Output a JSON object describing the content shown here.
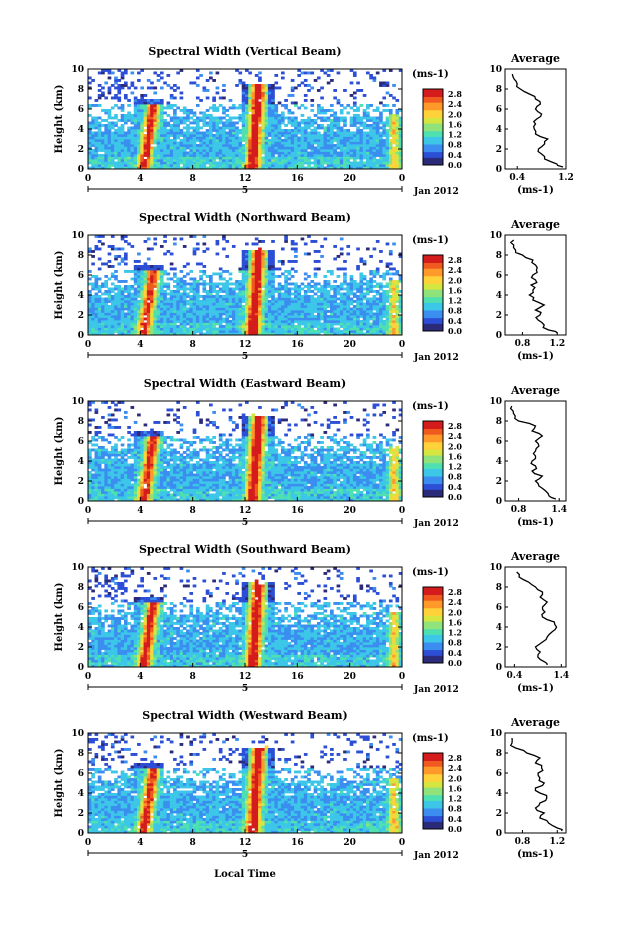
{
  "chart_data": {
    "type": "heatmap",
    "shared": {
      "date_label": "Jan 2012",
      "day_label": "5",
      "x_ticks": [
        "0",
        "4",
        "8",
        "12",
        "16",
        "20",
        "0"
      ],
      "xlabel_bottom": "Local Time",
      "ylabel": "Height (km)",
      "y_ticks": [
        "0",
        "2",
        "4",
        "6",
        "8",
        "10"
      ],
      "ylim": [
        0,
        10
      ],
      "xlim_hours": [
        0,
        24
      ],
      "colorbar_unit": "(ms-1)",
      "colorbar_ticks": [
        "0.0",
        "0.4",
        "0.8",
        "1.2",
        "1.6",
        "2.0",
        "2.4",
        "2.8"
      ],
      "colorbar_range": [
        0,
        3.0
      ],
      "colors": [
        "#2b2b7a",
        "#2c4fd6",
        "#3b8ef0",
        "#3cc6e8",
        "#4fe0b0",
        "#8fe37a",
        "#d6e640",
        "#ffd23a",
        "#ff9a2a",
        "#f05a1e",
        "#d41c1c"
      ],
      "avg_title": "Average",
      "avg_xlabel": "(ms-1)",
      "avg_yticks": [
        "0",
        "2",
        "4",
        "6",
        "8",
        "10"
      ]
    },
    "panels": [
      {
        "title": "Spectral Width (Vertical Beam)",
        "avg_xticks": [
          "0.4",
          "1.2"
        ],
        "avg_xlim": [
          0.2,
          1.2
        ],
        "avg_profile": {
          "height": [
            0.2,
            0.5,
            1.0,
            1.5,
            2.0,
            2.5,
            3.0,
            3.5,
            4.0,
            4.5,
            5.0,
            5.5,
            6.0,
            6.5,
            7.0,
            7.5,
            8.0,
            8.5,
            9.0,
            9.5
          ],
          "value": [
            1.15,
            1.05,
            0.85,
            0.8,
            0.75,
            0.85,
            0.9,
            0.7,
            0.68,
            0.7,
            0.72,
            0.8,
            0.7,
            0.78,
            0.7,
            0.6,
            0.45,
            0.4,
            0.35,
            0.32
          ]
        }
      },
      {
        "title": "Spectral Width (Northward Beam)",
        "avg_xticks": [
          "0.8",
          "1.2"
        ],
        "avg_xlim": [
          0.6,
          1.3
        ],
        "avg_profile": {
          "height": [
            0.2,
            0.5,
            1.0,
            1.5,
            2.0,
            2.5,
            3.0,
            3.5,
            4.0,
            4.5,
            5.0,
            5.5,
            6.0,
            6.5,
            7.0,
            7.5,
            8.0,
            8.5,
            9.0,
            9.5
          ],
          "value": [
            1.2,
            1.1,
            1.05,
            0.98,
            1.0,
            0.95,
            1.05,
            0.92,
            0.88,
            0.92,
            0.9,
            0.95,
            0.92,
            0.96,
            0.95,
            0.92,
            0.8,
            0.72,
            0.7,
            0.7
          ]
        }
      },
      {
        "title": "Spectral Width (Eastward Beam)",
        "avg_xticks": [
          "0.8",
          "1.4"
        ],
        "avg_xlim": [
          0.6,
          1.5
        ],
        "avg_profile": {
          "height": [
            0.2,
            0.5,
            1.0,
            1.5,
            2.0,
            2.5,
            3.0,
            3.5,
            4.0,
            4.5,
            5.0,
            5.5,
            6.0,
            6.5,
            7.0,
            7.5,
            8.0,
            8.5,
            9.0,
            9.5
          ],
          "value": [
            1.35,
            1.25,
            1.2,
            1.1,
            1.05,
            1.15,
            1.0,
            1.05,
            1.0,
            1.05,
            1.05,
            1.1,
            1.05,
            1.15,
            1.0,
            1.05,
            0.8,
            0.75,
            0.72,
            0.7
          ]
        }
      },
      {
        "title": "Spectral Width (Southward Beam)",
        "avg_xticks": [
          "0.4",
          "1.4"
        ],
        "avg_xlim": [
          0.2,
          1.5
        ],
        "avg_profile": {
          "height": [
            0.2,
            0.5,
            1.0,
            1.5,
            2.0,
            2.5,
            3.0,
            3.5,
            4.0,
            4.5,
            5.0,
            5.5,
            6.0,
            6.5,
            7.0,
            7.5,
            8.0,
            8.5,
            9.0,
            9.5
          ],
          "value": [
            1.1,
            1.05,
            0.9,
            0.95,
            0.85,
            1.0,
            1.1,
            1.2,
            1.3,
            1.25,
            1.0,
            1.05,
            1.0,
            1.1,
            0.95,
            1.0,
            0.85,
            0.7,
            0.5,
            0.45
          ]
        }
      },
      {
        "title": "Spectral Width (Westward Beam)",
        "avg_xticks": [
          "0.8",
          "1.2"
        ],
        "avg_xlim": [
          0.6,
          1.3
        ],
        "avg_profile": {
          "height": [
            0.2,
            0.5,
            1.0,
            1.5,
            2.0,
            2.5,
            3.0,
            3.5,
            4.0,
            4.5,
            5.0,
            5.5,
            6.0,
            6.5,
            7.0,
            7.5,
            8.0,
            8.5,
            9.0,
            9.5
          ],
          "value": [
            1.25,
            1.2,
            1.1,
            1.0,
            1.05,
            0.95,
            1.0,
            1.08,
            1.0,
            0.95,
            1.05,
            1.0,
            0.98,
            1.02,
            0.95,
            1.0,
            0.85,
            0.72,
            0.68,
            0.68
          ]
        }
      }
    ],
    "features": [
      {
        "desc": "convective burst",
        "time_hours": 4.5,
        "top_km": 6.5
      },
      {
        "desc": "convective burst",
        "time_hours": 12.8,
        "top_km": 8.5
      },
      {
        "desc": "late-day enhancement",
        "time_hours": 23.4,
        "top_km": 5.5
      }
    ]
  }
}
